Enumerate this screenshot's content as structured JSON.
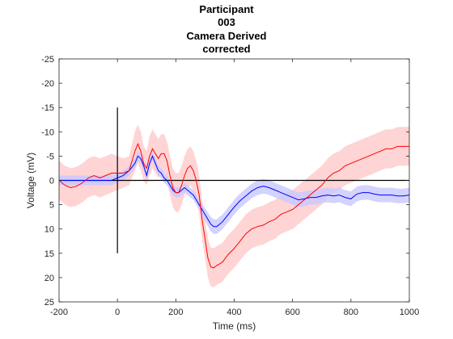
{
  "chart_data": {
    "type": "line",
    "title": [
      "Participant",
      "003",
      "Camera Derived",
      "corrected"
    ],
    "xlabel": "Time (ms)",
    "ylabel": "Voltage (mV)",
    "xlim": [
      -200,
      1000
    ],
    "ylim": [
      -25,
      25
    ],
    "y_reversed": true,
    "xticks": [
      -200,
      0,
      200,
      400,
      600,
      800,
      1000
    ],
    "yticks": [
      -25,
      -20,
      -15,
      -10,
      -5,
      0,
      5,
      10,
      15,
      20,
      25
    ],
    "grid": false,
    "legend": "none",
    "reference_lines": {
      "zero_horizontal": 0,
      "stimulus_marker": {
        "x": 0,
        "y_from": -15,
        "y_to": 15
      }
    },
    "series": [
      {
        "color": "#ff0000",
        "band_color": "#ffcccc",
        "x": [
          -200,
          -180,
          -160,
          -140,
          -120,
          -100,
          -80,
          -60,
          -40,
          -20,
          0,
          20,
          40,
          60,
          70,
          80,
          90,
          100,
          110,
          120,
          130,
          140,
          150,
          160,
          170,
          180,
          190,
          200,
          210,
          220,
          230,
          240,
          250,
          260,
          270,
          280,
          290,
          300,
          310,
          320,
          330,
          340,
          350,
          360,
          380,
          400,
          420,
          440,
          460,
          480,
          500,
          520,
          540,
          560,
          580,
          600,
          620,
          640,
          660,
          680,
          700,
          720,
          740,
          760,
          780,
          800,
          820,
          840,
          860,
          880,
          900,
          920,
          940,
          960,
          980,
          1000
        ],
        "values": [
          0,
          1,
          1.5,
          1.2,
          0.5,
          -0.5,
          -1,
          -0.5,
          -1,
          -1.5,
          -1.5,
          -1.5,
          -2,
          -6,
          -7.5,
          -6,
          -3.5,
          -2.5,
          -5,
          -6.5,
          -5.5,
          -4.5,
          -5.5,
          -5.5,
          -4,
          -1,
          1.5,
          2.5,
          2.5,
          1,
          -1,
          -2.5,
          -3,
          -2,
          0,
          3,
          8,
          12,
          16,
          17.8,
          18,
          17.5,
          17.2,
          16.8,
          15.2,
          14,
          12.5,
          11,
          10,
          9.5,
          9.2,
          8.5,
          8,
          7,
          6.5,
          6,
          5,
          4,
          3,
          2,
          1,
          -0.5,
          -1.5,
          -2,
          -3,
          -3.5,
          -4,
          -4.5,
          -5,
          -5.5,
          -6,
          -6.5,
          -6.5,
          -7,
          -7,
          -7
        ],
        "band_halfwidth": [
          4,
          4,
          4,
          4,
          4,
          4,
          4,
          4,
          4,
          4,
          3.5,
          3,
          3,
          4,
          4,
          4,
          3.5,
          3.5,
          4,
          4,
          4,
          4,
          4,
          4,
          4,
          4,
          4,
          4,
          4,
          4,
          4,
          4,
          4,
          4,
          4,
          4,
          4,
          4,
          4,
          4,
          4,
          4,
          4,
          4,
          4,
          4,
          4,
          4,
          4,
          4,
          4,
          4,
          4,
          4,
          4,
          4,
          4,
          4,
          4,
          4,
          4,
          4,
          4,
          4,
          4,
          4,
          4,
          4,
          4,
          4,
          4,
          4,
          4,
          4,
          4,
          4
        ]
      },
      {
        "color": "#0000ff",
        "band_color": "#c8c8ff",
        "x": [
          -200,
          -180,
          -160,
          -140,
          -120,
          -100,
          -80,
          -60,
          -40,
          -20,
          0,
          20,
          40,
          60,
          70,
          80,
          90,
          100,
          110,
          120,
          130,
          140,
          150,
          160,
          170,
          180,
          190,
          200,
          210,
          220,
          230,
          240,
          250,
          260,
          270,
          280,
          290,
          300,
          310,
          320,
          330,
          340,
          350,
          360,
          380,
          400,
          420,
          440,
          460,
          480,
          500,
          520,
          540,
          560,
          580,
          600,
          620,
          640,
          660,
          680,
          700,
          720,
          740,
          760,
          780,
          800,
          820,
          840,
          860,
          880,
          900,
          920,
          940,
          960,
          980,
          1000
        ],
        "values": [
          0,
          0,
          0,
          0,
          0,
          0,
          0,
          0,
          0,
          0,
          -0.5,
          -1,
          -2,
          -3.5,
          -5,
          -4.5,
          -3,
          -1,
          -3.5,
          -5,
          -3.5,
          -2,
          -1.5,
          -0.5,
          0,
          1,
          2,
          2.5,
          2.5,
          2,
          1.5,
          2,
          2.5,
          3,
          4,
          5,
          6,
          7,
          8,
          9,
          9.5,
          9.5,
          9,
          8.5,
          7,
          5.5,
          4.2,
          3.2,
          2.2,
          1.5,
          1.2,
          1.5,
          2,
          2.5,
          3,
          3.5,
          4,
          3.8,
          3.5,
          3.5,
          3.2,
          3,
          3.2,
          3,
          3.5,
          3.8,
          2.8,
          2.5,
          2.5,
          2.8,
          3,
          3,
          3,
          3.2,
          3.2,
          3
        ],
        "band_halfwidth": [
          1,
          1,
          1,
          1,
          1,
          1,
          1,
          1,
          1,
          1,
          1,
          1,
          1,
          1,
          1,
          1,
          1,
          1,
          1,
          1,
          1,
          1,
          1,
          1,
          1,
          1,
          1,
          1,
          1,
          1,
          1,
          1,
          1,
          1,
          1,
          1,
          1.2,
          1.3,
          1.4,
          1.5,
          1.5,
          1.5,
          1.5,
          1.5,
          1.5,
          1.5,
          1.5,
          1.5,
          1.5,
          1.5,
          1.5,
          1.5,
          1.5,
          1.5,
          1.5,
          1.5,
          1.5,
          1.5,
          1.5,
          1.5,
          1.5,
          1.5,
          1.5,
          1.5,
          1.5,
          1.5,
          1.5,
          1.5,
          1.5,
          1.5,
          1.5,
          1.5,
          1.5,
          1.5,
          1.5,
          1.5
        ]
      }
    ]
  }
}
